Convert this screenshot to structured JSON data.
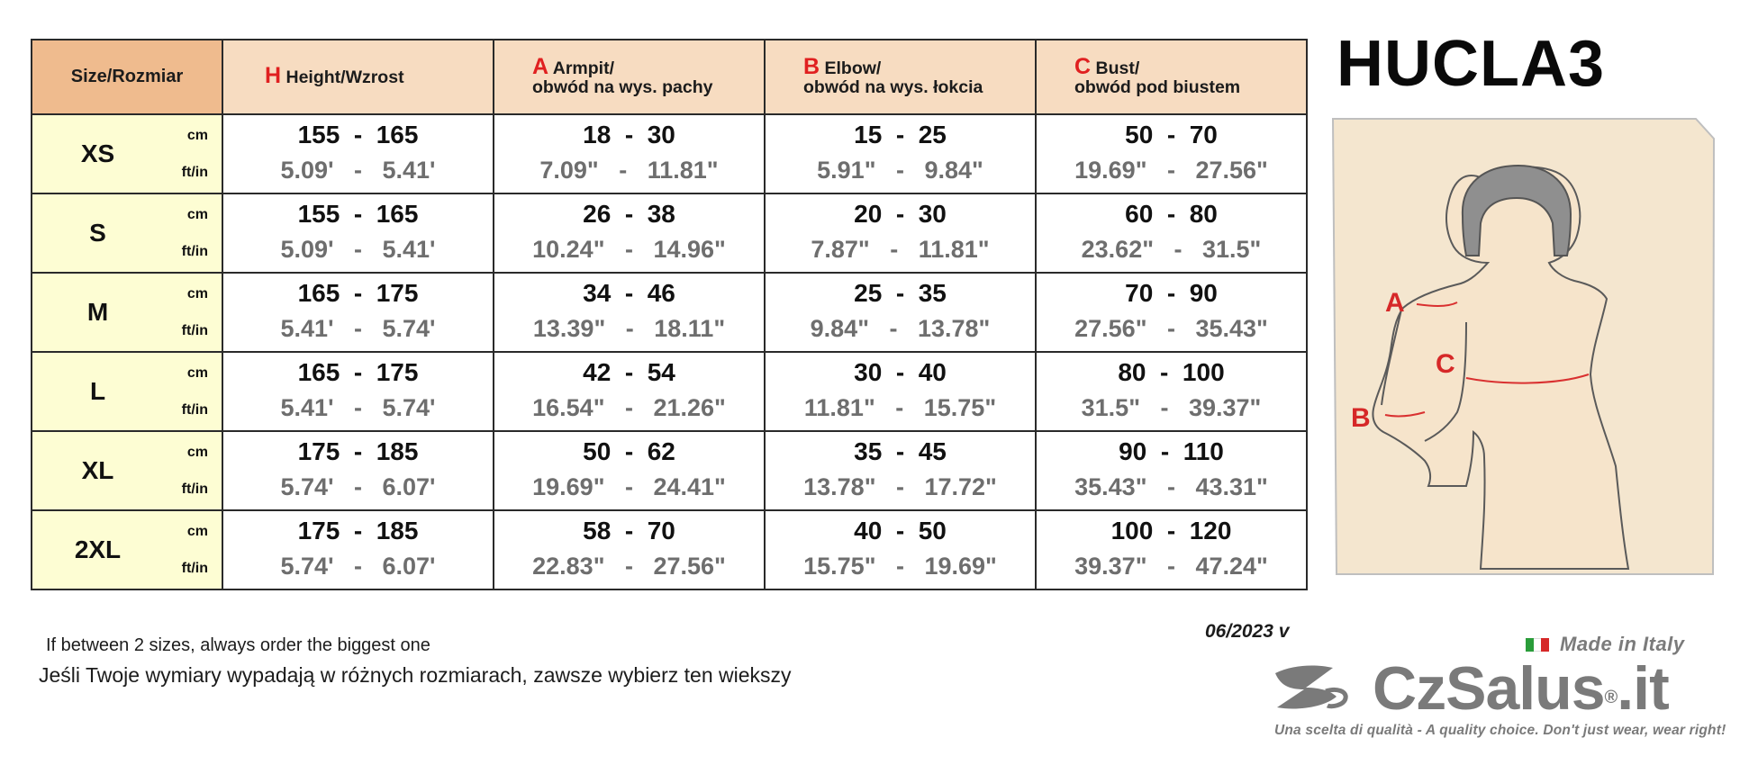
{
  "table": {
    "header": {
      "size": "Size/Rozmiar",
      "height": {
        "letter": "H",
        "line1": "Height/Wzrost"
      },
      "armpit": {
        "letter": "A",
        "line1": "Armpit/",
        "line2": "obwód na wys. pachy"
      },
      "elbow": {
        "letter": "B",
        "line1": "Elbow/",
        "line2": "obwód na wys. łokcia"
      },
      "bust": {
        "letter": "C",
        "line1": "Bust/",
        "line2": "obwód pod biustem"
      }
    },
    "unit_cm": "cm",
    "unit_ftin": "ft/in",
    "rows": [
      {
        "size": "XS",
        "height_cm": "155  -  165",
        "height_ftin": "5.09'   -   5.41'",
        "armpit_cm": "18  -  30",
        "armpit_in": "7.09\"   -   11.81\"",
        "elbow_cm": "15  -  25",
        "elbow_in": "5.91\"   -   9.84\"",
        "bust_cm": "50  -  70",
        "bust_in": "19.69\"   -   27.56\""
      },
      {
        "size": "S",
        "height_cm": "155  -  165",
        "height_ftin": "5.09'   -   5.41'",
        "armpit_cm": "26  -  38",
        "armpit_in": "10.24\"   -   14.96\"",
        "elbow_cm": "20  -  30",
        "elbow_in": "7.87\"   -   11.81\"",
        "bust_cm": "60  -  80",
        "bust_in": "23.62\"   -   31.5\""
      },
      {
        "size": "M",
        "height_cm": "165  -  175",
        "height_ftin": "5.41'   -   5.74'",
        "armpit_cm": "34  -  46",
        "armpit_in": "13.39\"   -   18.11\"",
        "elbow_cm": "25  -  35",
        "elbow_in": "9.84\"   -   13.78\"",
        "bust_cm": "70  -  90",
        "bust_in": "27.56\"   -   35.43\""
      },
      {
        "size": "L",
        "height_cm": "165  -  175",
        "height_ftin": "5.41'   -   5.74'",
        "armpit_cm": "42  -  54",
        "armpit_in": "16.54\"   -   21.26\"",
        "elbow_cm": "30  -  40",
        "elbow_in": "11.81\"   -   15.75\"",
        "bust_cm": "80  -  100",
        "bust_in": "31.5\"   -   39.37\""
      },
      {
        "size": "XL",
        "height_cm": "175  -  185",
        "height_ftin": "5.74'   -   6.07'",
        "armpit_cm": "50  -  62",
        "armpit_in": "19.69\"   -   24.41\"",
        "elbow_cm": "35  -  45",
        "elbow_in": "13.78\"   -   17.72\"",
        "bust_cm": "90  -  110",
        "bust_in": "35.43\"   -   43.31\""
      },
      {
        "size": "2XL",
        "height_cm": "175  -  185",
        "height_ftin": "5.74'   -   6.07'",
        "armpit_cm": "58  -  70",
        "armpit_in": "22.83\"   -   27.56\"",
        "elbow_cm": "40  -  50",
        "elbow_in": "15.75\"   -   19.69\"",
        "bust_cm": "100  -  120",
        "bust_in": "39.37\"   -   47.24\""
      }
    ]
  },
  "model_code": "HUCLA3",
  "figure": {
    "label_a": "A",
    "label_b": "B",
    "label_c": "C"
  },
  "note_en": "If between 2 sizes, always order the biggest one",
  "note_pl": "Jeśli Twoje wymiary wypadają w różnych rozmiarach, zawsze wybierz ten wiekszy",
  "version": "06/2023 v",
  "made_in": "Made in Italy",
  "brand": {
    "name": "CzSalus",
    "suffix": ".it",
    "registered": "®",
    "tagline": "Una scelta di qualità - A quality choice. Don't just wear, wear right!"
  },
  "colors": {
    "header_bg": "#f7dcc1",
    "corner_bg": "#efbb8e",
    "size_bg": "#fdfdd3",
    "accent_red": "#e02020",
    "figure_skin": "#f4e6cf",
    "brand_gray": "#7a7a7a",
    "flag": [
      "#2a9d3a",
      "#ffffff",
      "#d62828"
    ]
  }
}
